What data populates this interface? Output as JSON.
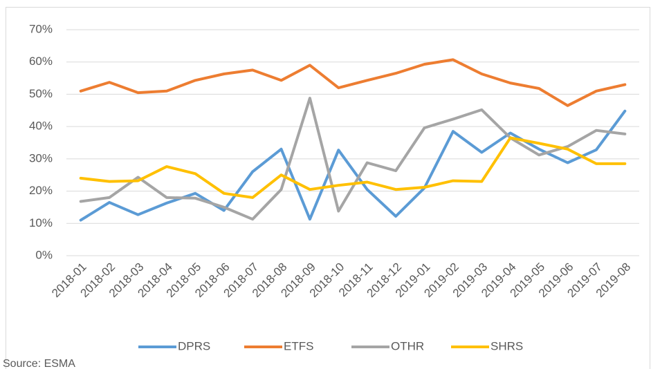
{
  "chart_data": {
    "type": "line",
    "categories": [
      "2018-01",
      "2018-02",
      "2018-03",
      "2018-04",
      "2018-05",
      "2018-06",
      "2018-07",
      "2018-08",
      "2018-09",
      "2018-10",
      "2018-11",
      "2018-12",
      "2019-01",
      "2019-02",
      "2019-03",
      "2019-04",
      "2019-05",
      "2019-06",
      "2019-07",
      "2019-08"
    ],
    "series": [
      {
        "name": "DPRS",
        "color": "#5b9bd5",
        "values": [
          11,
          16.5,
          12.7,
          16.3,
          19.3,
          14,
          26,
          33,
          11.3,
          32.7,
          20.5,
          12.2,
          21,
          38.5,
          32,
          38,
          33,
          28.8,
          32.8,
          44.8
        ]
      },
      {
        "name": "ETFS",
        "color": "#ed7d31",
        "values": [
          51,
          53.7,
          50.5,
          51,
          54.3,
          56.3,
          57.5,
          54.3,
          59,
          52,
          54.3,
          56.5,
          59.3,
          60.7,
          56.3,
          53.5,
          51.8,
          46.5,
          51,
          53
        ]
      },
      {
        "name": "OTHR",
        "color": "#a5a5a5",
        "values": [
          16.8,
          18,
          24.3,
          18,
          17.8,
          15,
          11.3,
          20.5,
          48.8,
          13.8,
          28.8,
          26.3,
          39.6,
          42.3,
          45.2,
          36.5,
          31.2,
          33.8,
          38.8,
          37.7
        ]
      },
      {
        "name": "SHRS",
        "color": "#ffc000",
        "values": [
          24,
          23,
          23.2,
          27.6,
          25.4,
          19.3,
          18,
          25,
          20.5,
          21.8,
          22.8,
          20.5,
          21.2,
          23.2,
          23,
          36.5,
          34.8,
          33,
          28.5,
          28.5
        ]
      }
    ],
    "ylim": [
      0,
      70
    ],
    "yticks": [
      {
        "value": 0,
        "label": "0%"
      },
      {
        "value": 10,
        "label": "10%"
      },
      {
        "value": 20,
        "label": "20%"
      },
      {
        "value": 30,
        "label": "30%"
      },
      {
        "value": 40,
        "label": "40%"
      },
      {
        "value": 50,
        "label": "50%"
      },
      {
        "value": 60,
        "label": "60%"
      },
      {
        "value": 70,
        "label": "70%"
      }
    ],
    "grid": true,
    "legend": "bottom",
    "source": "Source: ESMA"
  }
}
